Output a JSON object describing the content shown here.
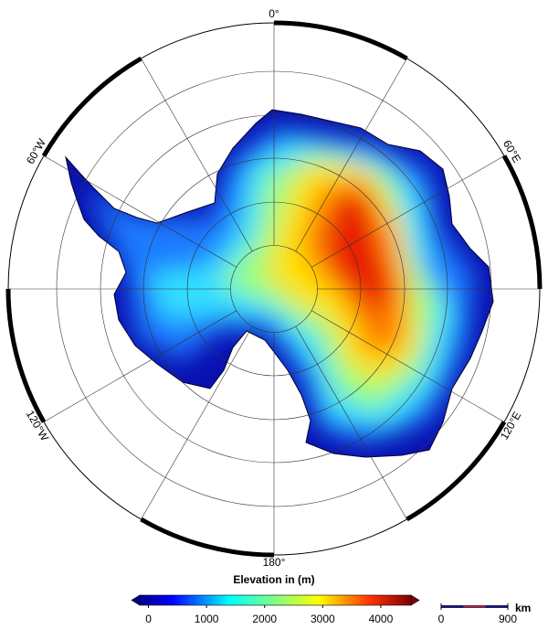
{
  "map": {
    "meridian_labels": [
      "0°",
      "60°E",
      "120°E",
      "180°",
      "120°W",
      "60°W"
    ],
    "colorbar": {
      "title": "Elevation in (m)",
      "range": [
        -150,
        4520
      ],
      "ticks": [
        0,
        1000,
        2000,
        3000,
        4000
      ]
    },
    "scale_bar": {
      "ticks": [
        0,
        900
      ],
      "unit": "km"
    }
  }
}
